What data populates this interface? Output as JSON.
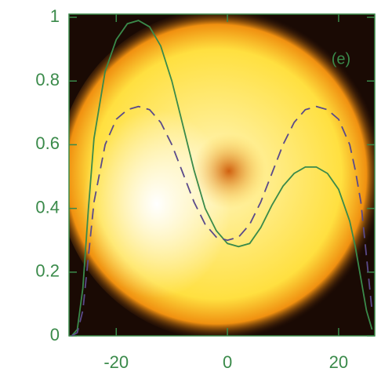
{
  "chart_data": {
    "type": "line",
    "annotation": "(e)",
    "x": [
      -28,
      -27,
      -26,
      -25,
      -24,
      -22,
      -20,
      -18,
      -16,
      -14,
      -12,
      -10,
      -8,
      -6,
      -4,
      -2,
      0,
      2,
      4,
      6,
      8,
      10,
      12,
      14,
      16,
      18,
      20,
      22,
      23,
      24,
      25,
      26
    ],
    "series": [
      {
        "color": "#3a8a4a",
        "linestyle": "solid",
        "values": [
          0.0,
          0.02,
          0.15,
          0.4,
          0.62,
          0.83,
          0.93,
          0.98,
          0.99,
          0.97,
          0.91,
          0.8,
          0.66,
          0.52,
          0.4,
          0.33,
          0.29,
          0.28,
          0.29,
          0.34,
          0.41,
          0.47,
          0.51,
          0.53,
          0.53,
          0.51,
          0.46,
          0.36,
          0.28,
          0.18,
          0.08,
          0.02
        ]
      },
      {
        "color": "#5a4a8a",
        "linestyle": "dashed",
        "values": [
          0.0,
          0.01,
          0.08,
          0.25,
          0.42,
          0.6,
          0.68,
          0.71,
          0.72,
          0.71,
          0.67,
          0.6,
          0.51,
          0.42,
          0.35,
          0.31,
          0.3,
          0.31,
          0.35,
          0.42,
          0.51,
          0.6,
          0.67,
          0.71,
          0.72,
          0.71,
          0.68,
          0.6,
          0.52,
          0.42,
          0.25,
          0.08
        ]
      }
    ],
    "xlim": [
      -28.5,
      26.5
    ],
    "xticks": [
      -20,
      0,
      20
    ],
    "ylim": [
      0,
      1.01
    ],
    "yticks": [
      0,
      0.2,
      0.4,
      0.6,
      0.8,
      1
    ],
    "tick_color": "#3a8a4a"
  }
}
